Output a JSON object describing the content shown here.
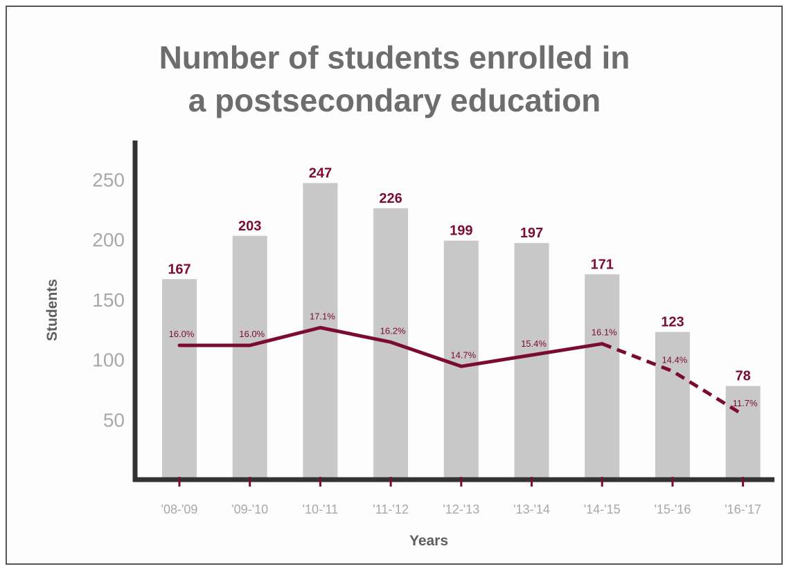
{
  "chart_data": {
    "type": "bar",
    "title_lines": [
      "Number of students enrolled in",
      "a postsecondary education"
    ],
    "xlabel": "Years",
    "ylabel": "Students",
    "ylim": [
      0,
      280
    ],
    "yticks": [
      50,
      100,
      150,
      200,
      250
    ],
    "grid": false,
    "categories": [
      "'08-'09",
      "'09-'10",
      "'10-'11",
      "'11-'12",
      "'12-'13",
      "'13-'14",
      "'14-'15",
      "'15-'16",
      "'16-'17"
    ],
    "series": [
      {
        "kind": "bar",
        "values": [
          167,
          203,
          247,
          226,
          199,
          197,
          171,
          123,
          78
        ],
        "value_labels": [
          "167",
          "203",
          "247",
          "226",
          "199",
          "197",
          "171",
          "123",
          "78"
        ],
        "color": "#c8c8c8"
      },
      {
        "kind": "line",
        "values": [
          16.0,
          16.0,
          17.1,
          16.2,
          14.7,
          15.4,
          16.1,
          14.4,
          11.7
        ],
        "value_labels": [
          "16.0%",
          "16.0%",
          "17.1%",
          "16.2%",
          "14.7%",
          "15.4%",
          "16.1%",
          "14.4%",
          "11.7%"
        ],
        "dashed_from_index": 6,
        "color": "#7b0c2e"
      }
    ],
    "colors": {
      "axis": "#333333",
      "tick": "#a8a8a8",
      "label": "#5e5e5e",
      "accent": "#7b0c2e"
    }
  }
}
